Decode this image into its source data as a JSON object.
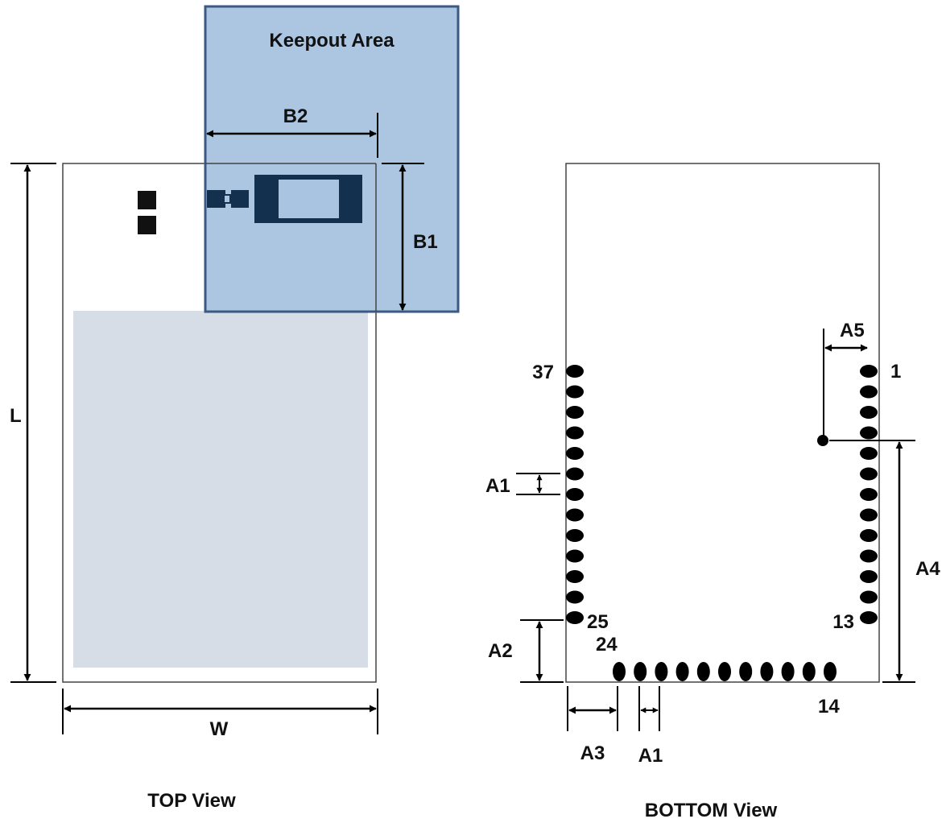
{
  "top_view": {
    "title": "TOP View",
    "keepout_label": "Keepout Area",
    "dim_L": "L",
    "dim_W": "W",
    "dim_B1": "B1",
    "dim_B2": "B2"
  },
  "bottom_view": {
    "title": "BOTTOM View",
    "pin_labels": {
      "p1": "1",
      "p13": "13",
      "p14": "14",
      "p24": "24",
      "p25": "25",
      "p37": "37"
    },
    "dim_A1": "A1",
    "dim_A2": "A2",
    "dim_A3": "A3",
    "dim_A4": "A4",
    "dim_A5": "A5"
  },
  "colors": {
    "keepout_fill": "#a9c4e1",
    "keepout_stroke": "#3a5a85",
    "shield_fill": "#d6dde7",
    "component": "#14304f",
    "pad": "#000000",
    "line": "#000000"
  },
  "pin_counts": {
    "left_column": 13,
    "right_column": 13,
    "bottom_row": 11
  }
}
